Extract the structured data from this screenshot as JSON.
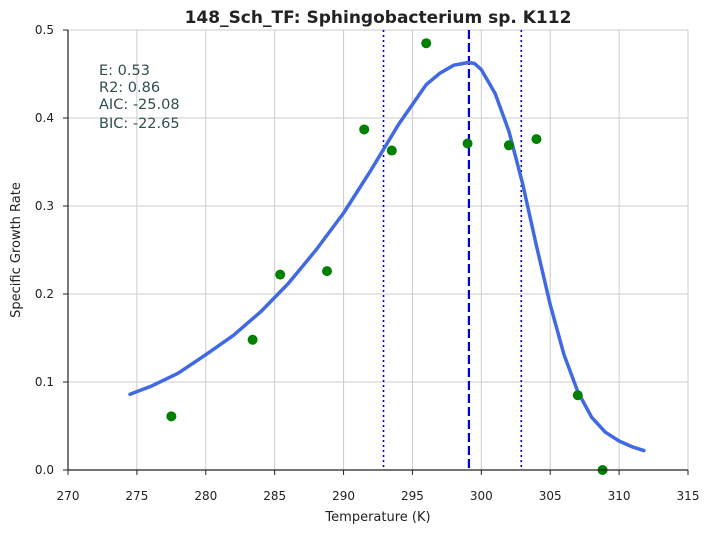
{
  "chart_data": {
    "type": "scatter",
    "title": "148_Sch_TF: Sphingobacterium sp. K112",
    "xlabel": "Temperature (K)",
    "ylabel": "Specific Growth Rate",
    "xlim": [
      270,
      315
    ],
    "ylim": [
      0.0,
      0.5
    ],
    "grid": true,
    "x_ticks": [
      "270",
      "275",
      "280",
      "285",
      "290",
      "295",
      "300",
      "305",
      "310",
      "315"
    ],
    "y_ticks": [
      "0.0",
      "0.1",
      "0.2",
      "0.3",
      "0.4",
      "0.5"
    ],
    "annotations": [
      "E:  0.53",
      "R2:  0.86",
      "AIC: -25.08",
      "BIC: -22.65"
    ],
    "colors": {
      "points": "#008000",
      "fit": "#4169e1",
      "lines": "#0000cd",
      "grid": "#cccccc",
      "text": "#2f4f4f"
    },
    "series": [
      {
        "type": "scatter",
        "x": [
          277.5,
          283.4,
          285.4,
          288.8,
          291.5,
          293.5,
          296.0,
          299.0,
          302.0,
          304.0,
          307.0,
          308.8
        ],
        "y": [
          0.061,
          0.148,
          0.222,
          0.226,
          0.387,
          0.363,
          0.485,
          0.371,
          0.369,
          0.376,
          0.085,
          0.0
        ]
      },
      {
        "type": "line",
        "x": [
          274.5,
          276,
          278,
          280,
          282,
          284,
          286,
          288,
          290,
          292,
          294,
          296,
          297,
          298,
          299,
          299.5,
          300,
          301,
          302,
          303,
          304,
          305,
          306,
          307,
          308,
          309,
          310,
          311,
          311.8
        ],
        "y": [
          0.086,
          0.095,
          0.11,
          0.131,
          0.153,
          0.18,
          0.212,
          0.25,
          0.292,
          0.341,
          0.393,
          0.438,
          0.451,
          0.46,
          0.463,
          0.462,
          0.455,
          0.428,
          0.385,
          0.325,
          0.255,
          0.188,
          0.131,
          0.089,
          0.06,
          0.043,
          0.033,
          0.026,
          0.022
        ]
      }
    ],
    "vlines": [
      {
        "x": 299.1,
        "style": "dashed"
      },
      {
        "x": 292.9,
        "style": "dotted"
      },
      {
        "x": 302.9,
        "style": "dotted"
      }
    ]
  }
}
